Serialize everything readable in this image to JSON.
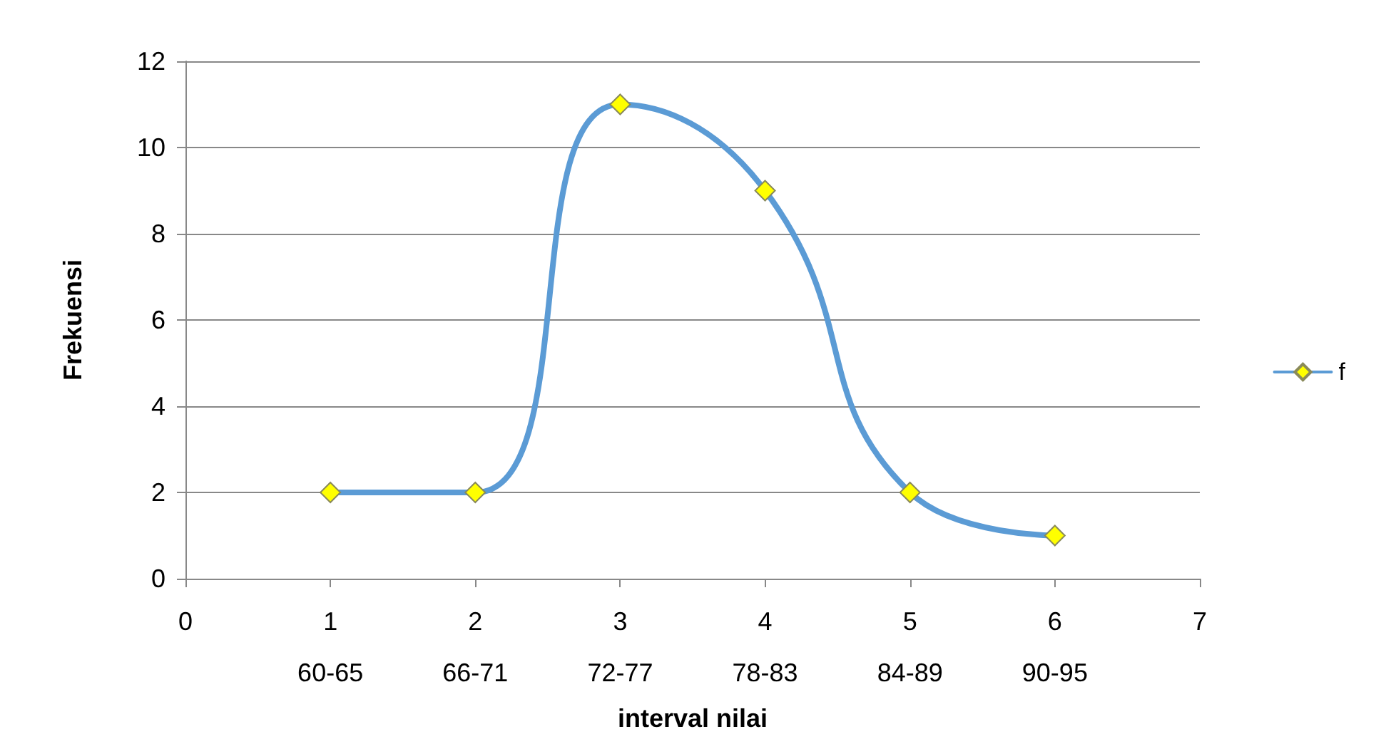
{
  "chart_data": {
    "type": "line",
    "xlabel": "interval nilai",
    "ylabel": "Frekuensi",
    "x": [
      1,
      2,
      3,
      4,
      5,
      6
    ],
    "series": [
      {
        "name": "f",
        "color": "#5b9bd5",
        "values": [
          2,
          2,
          11,
          9,
          2,
          1
        ]
      }
    ],
    "xlim": [
      0,
      7
    ],
    "xticks": [
      0,
      {
        "value": 1,
        "label": "1\n60-65"
      },
      {
        "value": 2,
        "label": "2\n66-71"
      },
      {
        "value": 3,
        "label": "3\n72-77"
      },
      {
        "value": 4,
        "label": "4\n78-83"
      },
      {
        "value": 5,
        "label": "5\n84-89"
      },
      {
        "value": 6,
        "label": "6\n90-95"
      },
      7
    ],
    "ylim": [
      0,
      12
    ],
    "yticks": [
      0,
      2,
      4,
      6,
      8,
      10,
      12
    ],
    "grid": "y",
    "legend": "right",
    "marker": "diamond",
    "line_style": "solid"
  }
}
